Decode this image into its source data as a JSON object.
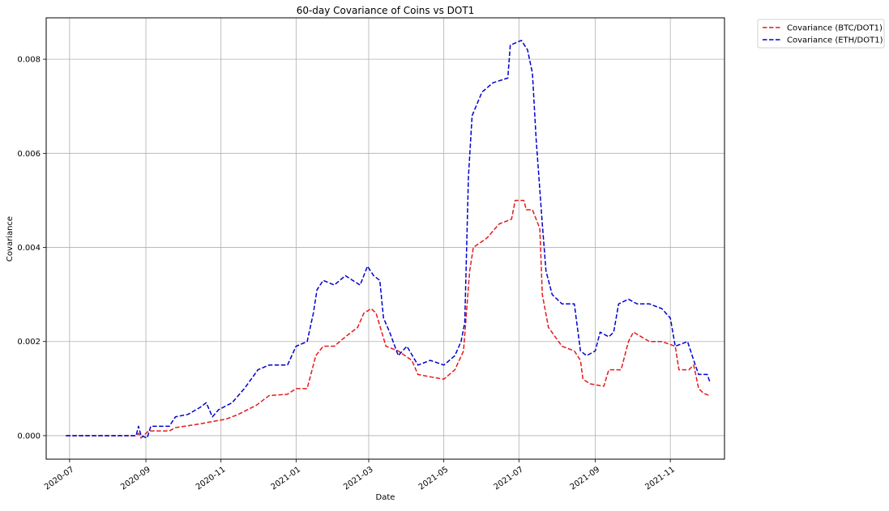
{
  "chart_data": {
    "type": "line",
    "title": "60-day Covariance of Coins vs DOT1",
    "xlabel": "Date",
    "ylabel": "Covariance",
    "x_tick_labels": [
      "2020-07",
      "2020-09",
      "2020-11",
      "2021-01",
      "2021-03",
      "2021-05",
      "2021-07",
      "2021-09",
      "2021-11"
    ],
    "x_tick_dates": [
      "2020-07-01",
      "2020-09-01",
      "2020-11-01",
      "2021-01-01",
      "2021-03-01",
      "2021-05-01",
      "2021-07-01",
      "2021-09-01",
      "2021-11-01"
    ],
    "xlim": [
      "2020-06-12",
      "2021-12-15"
    ],
    "y_tick_labels": [
      "0.000",
      "0.002",
      "0.004",
      "0.006",
      "0.008"
    ],
    "y_tick_values": [
      0,
      0.002,
      0.004,
      0.006,
      0.008
    ],
    "ylim": [
      -0.0005,
      0.00888
    ],
    "grid": true,
    "legend_position": "outside-top-right",
    "series": [
      {
        "name": "Covariance (BTC/DOT1)",
        "color": "#e31a1c",
        "line_style": "dashed",
        "points": [
          [
            "2020-06-28",
            0
          ],
          [
            "2020-08-24",
            0
          ],
          [
            "2020-08-26",
            5e-05
          ],
          [
            "2020-08-28",
            -5e-05
          ],
          [
            "2020-08-31",
            2e-05
          ],
          [
            "2020-09-03",
            0.0001
          ],
          [
            "2020-09-20",
            0.0001
          ],
          [
            "2020-09-25",
            0.00017
          ],
          [
            "2020-10-15",
            0.00025
          ],
          [
            "2020-10-25",
            0.0003
          ],
          [
            "2020-11-05",
            0.00035
          ],
          [
            "2020-11-15",
            0.00045
          ],
          [
            "2020-11-30",
            0.00065
          ],
          [
            "2020-12-10",
            0.00085
          ],
          [
            "2020-12-25",
            0.00088
          ],
          [
            "2021-01-01",
            0.001
          ],
          [
            "2021-01-10",
            0.001
          ],
          [
            "2021-01-17",
            0.0017
          ],
          [
            "2021-01-23",
            0.0019
          ],
          [
            "2021-02-01",
            0.0019
          ],
          [
            "2021-02-10",
            0.0021
          ],
          [
            "2021-02-20",
            0.0023
          ],
          [
            "2021-02-25",
            0.0026
          ],
          [
            "2021-03-03",
            0.0027
          ],
          [
            "2021-03-07",
            0.0026
          ],
          [
            "2021-03-15",
            0.0019
          ],
          [
            "2021-03-25",
            0.0018
          ],
          [
            "2021-04-05",
            0.0016
          ],
          [
            "2021-04-10",
            0.0013
          ],
          [
            "2021-04-20",
            0.00125
          ],
          [
            "2021-05-01",
            0.0012
          ],
          [
            "2021-05-10",
            0.0014
          ],
          [
            "2021-05-17",
            0.0018
          ],
          [
            "2021-05-22",
            0.0035
          ],
          [
            "2021-05-25",
            0.004
          ],
          [
            "2021-06-05",
            0.0042
          ],
          [
            "2021-06-15",
            0.0045
          ],
          [
            "2021-06-25",
            0.0046
          ],
          [
            "2021-06-28",
            0.005
          ],
          [
            "2021-07-05",
            0.005
          ],
          [
            "2021-07-07",
            0.0048
          ],
          [
            "2021-07-12",
            0.0048
          ],
          [
            "2021-07-18",
            0.0044
          ],
          [
            "2021-07-20",
            0.003
          ],
          [
            "2021-07-25",
            0.0023
          ],
          [
            "2021-08-05",
            0.0019
          ],
          [
            "2021-08-15",
            0.0018
          ],
          [
            "2021-08-20",
            0.0016
          ],
          [
            "2021-08-22",
            0.0012
          ],
          [
            "2021-08-28",
            0.0011
          ],
          [
            "2021-09-08",
            0.00105
          ],
          [
            "2021-09-12",
            0.0014
          ],
          [
            "2021-09-22",
            0.0014
          ],
          [
            "2021-09-28",
            0.002
          ],
          [
            "2021-10-02",
            0.0022
          ],
          [
            "2021-10-15",
            0.002
          ],
          [
            "2021-10-25",
            0.002
          ],
          [
            "2021-11-05",
            0.0019
          ],
          [
            "2021-11-08",
            0.0014
          ],
          [
            "2021-11-16",
            0.0014
          ],
          [
            "2021-11-20",
            0.0015
          ],
          [
            "2021-11-24",
            0.001
          ],
          [
            "2021-11-28",
            0.0009
          ],
          [
            "2021-12-03",
            0.00085
          ]
        ]
      },
      {
        "name": "Covariance (ETH/DOT1)",
        "color": "#0000cd",
        "line_style": "dashed",
        "points": [
          [
            "2020-06-28",
            0
          ],
          [
            "2020-08-24",
            0
          ],
          [
            "2020-08-26",
            0.0002
          ],
          [
            "2020-08-28",
            0
          ],
          [
            "2020-09-02",
            -5e-05
          ],
          [
            "2020-09-05",
            0.0002
          ],
          [
            "2020-09-20",
            0.0002
          ],
          [
            "2020-09-25",
            0.0004
          ],
          [
            "2020-10-05",
            0.00045
          ],
          [
            "2020-10-15",
            0.0006
          ],
          [
            "2020-10-20",
            0.0007
          ],
          [
            "2020-10-25",
            0.0004
          ],
          [
            "2020-10-30",
            0.00055
          ],
          [
            "2020-11-10",
            0.0007
          ],
          [
            "2020-11-20",
            0.001
          ],
          [
            "2020-12-01",
            0.0014
          ],
          [
            "2020-12-10",
            0.0015
          ],
          [
            "2020-12-25",
            0.0015
          ],
          [
            "2021-01-01",
            0.0019
          ],
          [
            "2021-01-10",
            0.002
          ],
          [
            "2021-01-15",
            0.0026
          ],
          [
            "2021-01-18",
            0.0031
          ],
          [
            "2021-01-23",
            0.0033
          ],
          [
            "2021-02-01",
            0.0032
          ],
          [
            "2021-02-10",
            0.0034
          ],
          [
            "2021-02-22",
            0.0032
          ],
          [
            "2021-02-28",
            0.0036
          ],
          [
            "2021-03-05",
            0.0034
          ],
          [
            "2021-03-10",
            0.0033
          ],
          [
            "2021-03-13",
            0.0025
          ],
          [
            "2021-03-18",
            0.0022
          ],
          [
            "2021-03-25",
            0.0017
          ],
          [
            "2021-04-01",
            0.0019
          ],
          [
            "2021-04-10",
            0.0015
          ],
          [
            "2021-04-20",
            0.0016
          ],
          [
            "2021-05-01",
            0.0015
          ],
          [
            "2021-05-10",
            0.0017
          ],
          [
            "2021-05-15",
            0.002
          ],
          [
            "2021-05-18",
            0.0024
          ],
          [
            "2021-05-21",
            0.0055
          ],
          [
            "2021-05-24",
            0.0068
          ],
          [
            "2021-06-01",
            0.0073
          ],
          [
            "2021-06-10",
            0.0075
          ],
          [
            "2021-06-22",
            0.0076
          ],
          [
            "2021-06-24",
            0.0083
          ],
          [
            "2021-07-03",
            0.0084
          ],
          [
            "2021-07-08",
            0.0082
          ],
          [
            "2021-07-12",
            0.0077
          ],
          [
            "2021-07-15",
            0.0063
          ],
          [
            "2021-07-20",
            0.0045
          ],
          [
            "2021-07-23",
            0.0035
          ],
          [
            "2021-07-28",
            0.003
          ],
          [
            "2021-08-05",
            0.0028
          ],
          [
            "2021-08-15",
            0.0028
          ],
          [
            "2021-08-20",
            0.0018
          ],
          [
            "2021-08-25",
            0.0017
          ],
          [
            "2021-09-01",
            0.0018
          ],
          [
            "2021-09-05",
            0.0022
          ],
          [
            "2021-09-12",
            0.0021
          ],
          [
            "2021-09-16",
            0.0022
          ],
          [
            "2021-09-20",
            0.0028
          ],
          [
            "2021-09-28",
            0.0029
          ],
          [
            "2021-10-05",
            0.0028
          ],
          [
            "2021-10-15",
            0.0028
          ],
          [
            "2021-10-25",
            0.0027
          ],
          [
            "2021-11-01",
            0.0025
          ],
          [
            "2021-11-05",
            0.0019
          ],
          [
            "2021-11-15",
            0.002
          ],
          [
            "2021-11-20",
            0.0016
          ],
          [
            "2021-11-24",
            0.0013
          ],
          [
            "2021-12-01",
            0.0013
          ],
          [
            "2021-12-03",
            0.00115
          ]
        ]
      }
    ]
  }
}
